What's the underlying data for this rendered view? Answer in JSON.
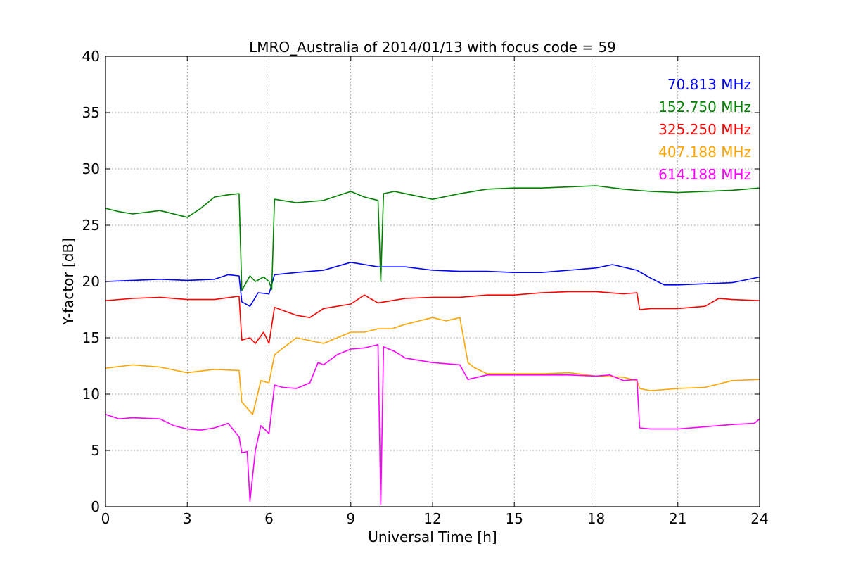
{
  "chart_data": {
    "type": "line",
    "title": "LMRO_Australia of 2014/01/13 with focus code = 59",
    "xlabel": "Universal Time [h]",
    "ylabel": "Y-factor [dB]",
    "xlim": [
      0,
      24
    ],
    "ylim": [
      0,
      40
    ],
    "xticks": [
      0,
      3,
      6,
      9,
      12,
      15,
      18,
      21,
      24
    ],
    "yticks": [
      0,
      5,
      10,
      15,
      20,
      25,
      30,
      35,
      40
    ],
    "grid": true,
    "legend_position": "top-right",
    "series": [
      {
        "name": "70.813 MHz",
        "color": "#0000ff",
        "x": [
          0,
          1,
          2,
          3,
          4,
          4.5,
          4.9,
          5.0,
          5.3,
          5.6,
          6.0,
          6.2,
          7.0,
          8.0,
          9.0,
          10.0,
          11.0,
          12.0,
          13.0,
          14.0,
          15.0,
          16.0,
          17.0,
          18.0,
          18.6,
          19.5,
          20.0,
          20.5,
          21.0,
          22.0,
          23.0,
          24.0
        ],
        "y": [
          20.0,
          20.1,
          20.2,
          20.1,
          20.2,
          20.6,
          20.5,
          18.2,
          17.8,
          19.0,
          18.9,
          20.6,
          20.8,
          21.0,
          21.7,
          21.3,
          21.3,
          21.0,
          20.9,
          20.9,
          20.8,
          20.8,
          21.0,
          21.2,
          21.5,
          21.0,
          20.3,
          19.7,
          19.7,
          19.8,
          19.9,
          20.4
        ]
      },
      {
        "name": "152.750 MHz",
        "color": "#008000",
        "x": [
          0,
          0.5,
          1,
          2,
          3,
          3.5,
          4,
          4.5,
          4.9,
          5.0,
          5.3,
          5.5,
          5.8,
          6.0,
          6.1,
          6.2,
          7.0,
          8.0,
          9.0,
          9.5,
          10.0,
          10.1,
          10.2,
          10.4,
          10.6,
          11.0,
          12.0,
          13.0,
          14.0,
          15.0,
          16.0,
          17.0,
          18.0,
          19.0,
          20.0,
          21.0,
          22.0,
          23.0,
          24.0
        ],
        "y": [
          26.5,
          26.2,
          26.0,
          26.3,
          25.7,
          26.5,
          27.5,
          27.7,
          27.8,
          19.2,
          20.5,
          20.0,
          20.4,
          20.0,
          19.3,
          27.3,
          27.0,
          27.2,
          28.0,
          27.5,
          27.2,
          20.0,
          27.8,
          27.9,
          28.0,
          27.8,
          27.3,
          27.8,
          28.2,
          28.3,
          28.3,
          28.4,
          28.5,
          28.2,
          28.0,
          27.9,
          28.0,
          28.1,
          28.3
        ]
      },
      {
        "name": "325.250 MHz",
        "color": "#ff0000",
        "x": [
          0,
          1,
          2,
          3,
          4,
          4.9,
          5.0,
          5.3,
          5.5,
          5.8,
          6.0,
          6.2,
          7.0,
          7.5,
          8.0,
          9.0,
          9.5,
          10.0,
          10.5,
          11.0,
          12.0,
          13.0,
          14.0,
          15.0,
          16.0,
          17.0,
          18.0,
          19.0,
          19.5,
          19.6,
          20.0,
          21.0,
          22.0,
          22.5,
          23.0,
          24.0
        ],
        "y": [
          18.3,
          18.5,
          18.6,
          18.4,
          18.4,
          18.7,
          14.8,
          15.0,
          14.5,
          15.5,
          14.5,
          17.7,
          17.0,
          16.8,
          17.6,
          18.0,
          18.8,
          18.1,
          18.3,
          18.5,
          18.6,
          18.6,
          18.8,
          18.8,
          19.0,
          19.1,
          19.1,
          18.9,
          19.0,
          17.5,
          17.6,
          17.6,
          17.8,
          18.5,
          18.4,
          18.3
        ]
      },
      {
        "name": "407.188 MHz",
        "color": "#ffa500",
        "x": [
          0,
          1,
          2,
          3,
          4,
          4.9,
          5.0,
          5.4,
          5.7,
          6.0,
          6.2,
          7.0,
          8.0,
          8.5,
          9.0,
          9.5,
          10.0,
          10.5,
          11.0,
          11.5,
          12.0,
          12.5,
          13.0,
          13.3,
          13.5,
          14.0,
          15.0,
          16.0,
          17.0,
          18.0,
          19.0,
          19.5,
          19.6,
          20.0,
          21.0,
          22.0,
          23.0,
          24.0
        ],
        "y": [
          12.3,
          12.6,
          12.4,
          11.9,
          12.2,
          12.1,
          9.3,
          8.2,
          11.2,
          11.0,
          13.5,
          15.0,
          14.5,
          15.0,
          15.5,
          15.5,
          15.8,
          15.8,
          16.2,
          16.5,
          16.8,
          16.5,
          16.8,
          12.8,
          12.4,
          11.8,
          11.8,
          11.8,
          11.9,
          11.6,
          11.5,
          11.2,
          10.5,
          10.3,
          10.5,
          10.6,
          11.2,
          11.3
        ]
      },
      {
        "name": "614.188 MHz",
        "color": "#ff00ff",
        "x": [
          0,
          0.5,
          1,
          2,
          2.5,
          3,
          3.5,
          4,
          4.5,
          4.9,
          5.0,
          5.2,
          5.3,
          5.5,
          5.7,
          6.0,
          6.2,
          6.5,
          7.0,
          7.5,
          7.8,
          8.0,
          8.5,
          9.0,
          9.5,
          10.0,
          10.1,
          10.2,
          10.4,
          10.6,
          11.0,
          12.0,
          13.0,
          13.3,
          14.0,
          15.0,
          16.0,
          17.0,
          18.0,
          18.5,
          19.0,
          19.5,
          19.6,
          20.0,
          21.0,
          22.0,
          23.0,
          23.8,
          24.0
        ],
        "y": [
          8.2,
          7.8,
          7.9,
          7.8,
          7.2,
          6.9,
          6.8,
          7.0,
          7.4,
          6.2,
          4.8,
          4.9,
          0.5,
          5.0,
          7.2,
          6.5,
          10.8,
          10.6,
          10.5,
          11.0,
          12.8,
          12.6,
          13.5,
          14.0,
          14.1,
          14.4,
          0.2,
          14.2,
          14.0,
          13.8,
          13.2,
          12.8,
          12.6,
          11.3,
          11.7,
          11.7,
          11.7,
          11.7,
          11.6,
          11.7,
          11.2,
          11.3,
          7.0,
          6.9,
          6.9,
          7.1,
          7.3,
          7.4,
          7.8
        ]
      }
    ],
    "legend": [
      "70.813 MHz",
      "152.750 MHz",
      "325.250 MHz",
      "407.188 MHz",
      "614.188 MHz"
    ]
  }
}
